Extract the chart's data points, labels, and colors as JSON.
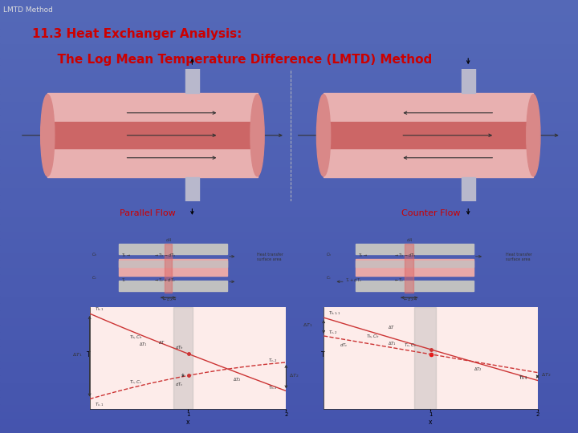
{
  "bg_color": "#4055a8",
  "header_text": "LMTD Method",
  "header_color": "#dddddd",
  "header_fontsize": 6.5,
  "title_line1": "11.3 Heat Exchanger Analysis:",
  "title_line2": "      The Log Mean Temperature Difference (LMTD) Method",
  "title_color": "#cc0000",
  "title_fontsize": 11,
  "parallel_label": "Parallel Flow",
  "counter_label": "Counter Flow",
  "label_color": "#cc0000",
  "label_fontsize": 8,
  "top_panel_bg": "#f8f6f4",
  "bottom_panel_bg": "#f8f6f4",
  "hot_dark": "#cc6666",
  "hot_light": "#e8b0b0",
  "hot_med": "#d98888",
  "pipe_color": "#b8b8cc",
  "graph_bg": "#fdecea",
  "schematic_bg": "#d8d8d8",
  "schematic_inner": "#e8a0a0",
  "highlight_col": "#cc4444"
}
